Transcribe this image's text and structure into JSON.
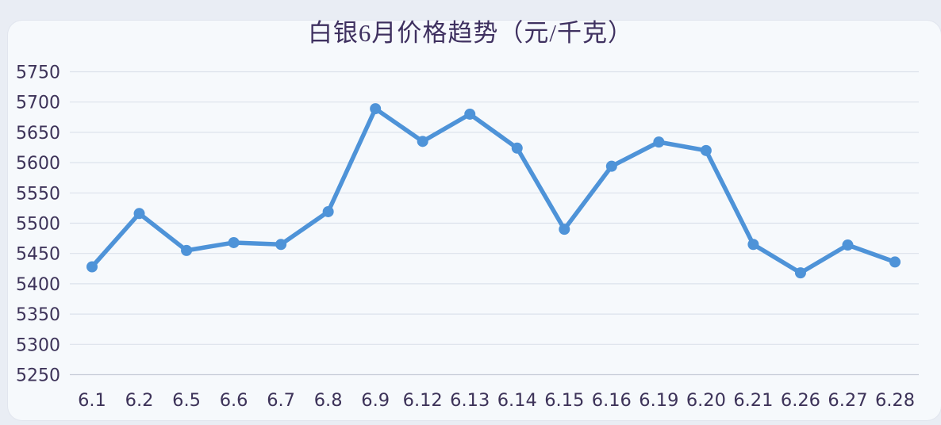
{
  "page": {
    "background_color": "#e9edf4",
    "card_background_color": "#f6f9fc"
  },
  "chart_data": {
    "type": "line",
    "title": "白银6月价格趋势（元/千克）",
    "xlabel": "",
    "ylabel": "",
    "categories": [
      "6.1",
      "6.2",
      "6.5",
      "6.6",
      "6.7",
      "6.8",
      "6.9",
      "6.12",
      "6.13",
      "6.14",
      "6.15",
      "6.16",
      "6.19",
      "6.20",
      "6.21",
      "6.26",
      "6.27",
      "6.28"
    ],
    "values": [
      5428,
      5516,
      5455,
      5468,
      5465,
      5519,
      5689,
      5635,
      5680,
      5624,
      5490,
      5594,
      5634,
      5620,
      5465,
      5418,
      5464,
      5436
    ],
    "ylim": [
      5250,
      5750
    ],
    "ytick_step": 50,
    "yticks": [
      5250,
      5300,
      5350,
      5400,
      5450,
      5500,
      5550,
      5600,
      5650,
      5700,
      5750
    ],
    "grid": true,
    "legend": false,
    "marker": "circle",
    "colors": {
      "line": "#4e93d8",
      "marker": "#4e93d8",
      "grid": "#dce2eb",
      "axis_line": "#c7ccd7",
      "tick_text": "#3d3359",
      "title_text": "#3f3160"
    }
  }
}
